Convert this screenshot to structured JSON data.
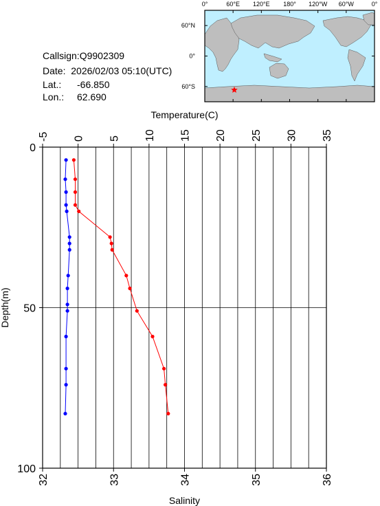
{
  "station": {
    "callsign_label": "Callsign:",
    "callsign": "Q9902309",
    "date_label": "Date:",
    "date": "2026/02/03 05:10(UTC)",
    "lat_label": "Lat.:",
    "lat": "-66.850",
    "lon_label": "Lon.:",
    "lon": "62.690"
  },
  "map": {
    "lon_ticks": [
      "0°",
      "60°E",
      "120°E",
      "180°",
      "120°W",
      "60°W",
      "0°"
    ],
    "lat_ticks": [
      "60°N",
      "0°",
      "60°S"
    ],
    "ocean_color": "#bfefff",
    "land_color": "#bebebe",
    "marker": {
      "lat": -66.85,
      "lon": 62.69,
      "color": "#ff0000",
      "icon": "star-icon"
    }
  },
  "chart_data": {
    "type": "line",
    "ylabel": "Depth(m)",
    "ylim": [
      100,
      0
    ],
    "yticks": [
      0,
      50,
      100
    ],
    "grid": true,
    "top_axis": {
      "label": "Temperature(C)",
      "lim": [
        -5,
        35
      ],
      "ticks": [
        -5,
        0,
        5,
        10,
        15,
        20,
        25,
        30,
        35
      ]
    },
    "bottom_axis": {
      "label": "Salinity",
      "lim": [
        32,
        36
      ],
      "ticks": [
        32,
        33,
        34,
        35,
        36
      ]
    },
    "series": [
      {
        "axis": "top",
        "color": "#ff0000",
        "depth": [
          4,
          10,
          14,
          18,
          20,
          28,
          30,
          32,
          40,
          44,
          51,
          59,
          69,
          74,
          83
        ],
        "values": [
          -0.6,
          -0.4,
          -0.4,
          -0.4,
          0.1,
          4.5,
          4.7,
          4.8,
          6.8,
          7.3,
          8.3,
          10.5,
          12.1,
          12.3,
          12.7
        ]
      },
      {
        "axis": "bottom",
        "color": "#0000ff",
        "depth": [
          4,
          10,
          14,
          18,
          20,
          28,
          30,
          32,
          40,
          44,
          49,
          51,
          59,
          69,
          74,
          83
        ],
        "values": [
          32.33,
          32.32,
          32.33,
          32.33,
          32.34,
          32.38,
          32.38,
          32.38,
          32.36,
          32.35,
          32.35,
          32.35,
          32.33,
          32.33,
          32.33,
          32.32
        ]
      }
    ]
  }
}
